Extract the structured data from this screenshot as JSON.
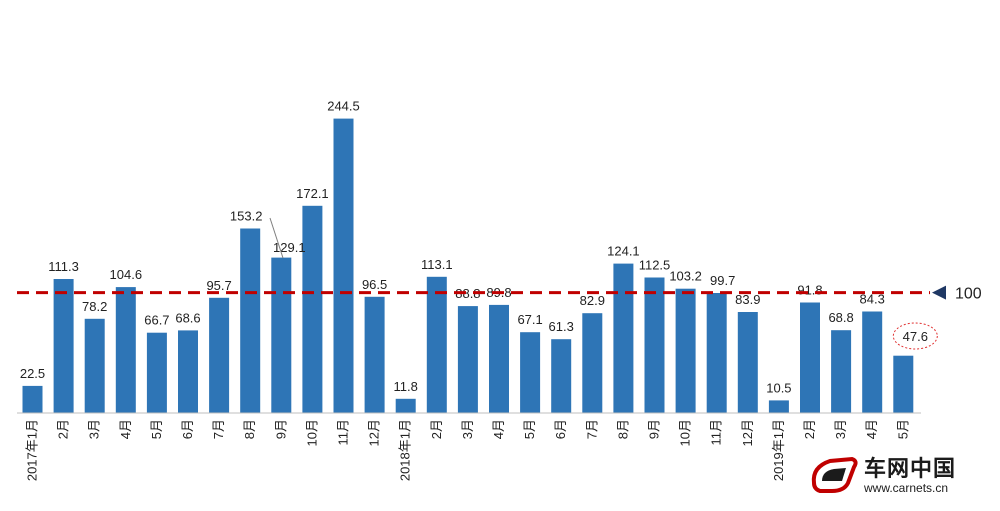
{
  "chart_data": {
    "type": "bar",
    "categories": [
      "2017年1月",
      "2月",
      "3月",
      "4月",
      "5月",
      "6月",
      "7月",
      "8月",
      "9月",
      "10月",
      "11月",
      "12月",
      "2018年1月",
      "2月",
      "3月",
      "4月",
      "5月",
      "6月",
      "7月",
      "8月",
      "9月",
      "10月",
      "11月",
      "12月",
      "2019年1月",
      "2月",
      "3月",
      "4月",
      "5月"
    ],
    "values": [
      22.5,
      111.3,
      78.2,
      104.6,
      66.7,
      68.6,
      95.7,
      153.2,
      129.1,
      172.1,
      244.5,
      96.5,
      11.8,
      113.1,
      88.8,
      89.8,
      67.1,
      61.3,
      82.9,
      124.1,
      112.5,
      103.2,
      99.7,
      83.9,
      10.5,
      91.8,
      68.8,
      84.3,
      47.6
    ],
    "value_labels": [
      "22.5",
      "111.3",
      "78.2",
      "104.6",
      "66.7",
      "68.6",
      "95.7",
      "153.2",
      "129.1",
      "172.1",
      "244.5",
      "96.5",
      "11.8",
      "113.1",
      "88.8",
      "89.8",
      "67.1",
      "61.3",
      "82.9",
      "124.1",
      "112.5",
      "103.2",
      "99.7",
      "83.9",
      "10.5",
      "91.8",
      "68.8",
      "84.3",
      "47.6"
    ],
    "reference_line": {
      "value": 100,
      "label": "100",
      "style": "dashed",
      "color": "#c00000"
    },
    "highlighted_category": "5月",
    "ylim": [
      0,
      255
    ],
    "bar_color": "#2e75b6",
    "title": "",
    "xlabel": "",
    "ylabel": "",
    "grid": false
  },
  "logo": {
    "brand": "车网中国",
    "url": "www.carnets.cn"
  }
}
